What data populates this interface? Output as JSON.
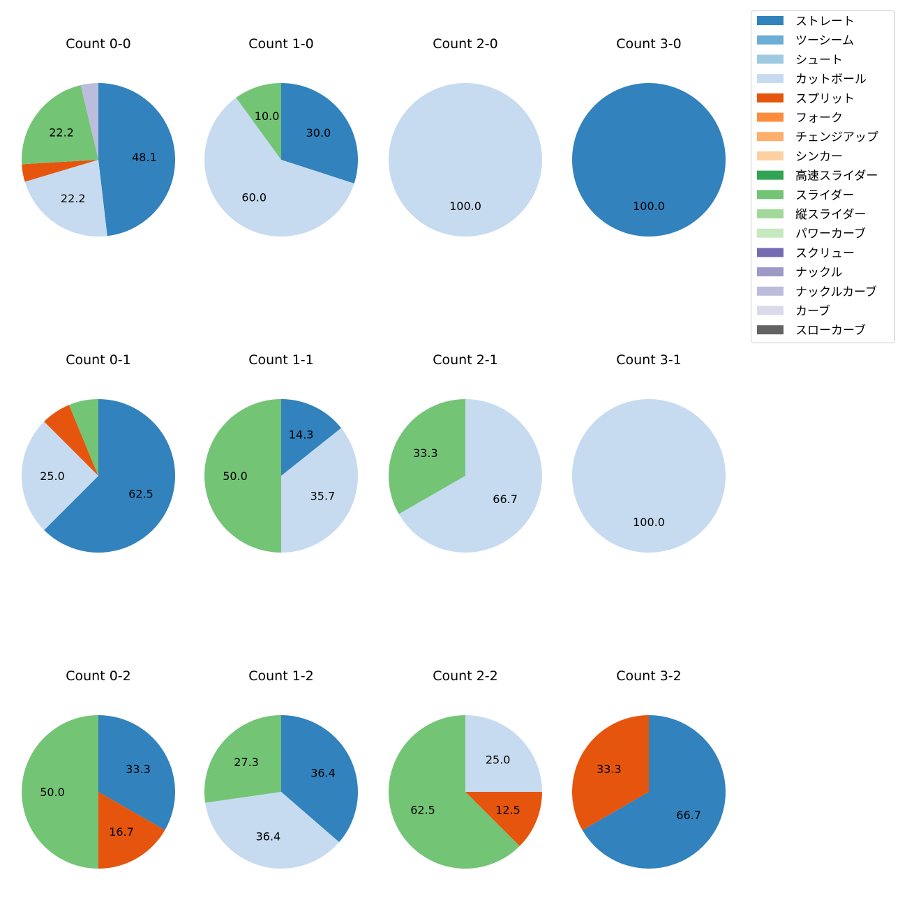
{
  "chart_data": {
    "type": "pie",
    "pitch_types": [
      {
        "name": "ストレート",
        "color": "#3182bd"
      },
      {
        "name": "ツーシーム",
        "color": "#6baed6"
      },
      {
        "name": "シュート",
        "color": "#9ecae1"
      },
      {
        "name": "カットボール",
        "color": "#c6dbef"
      },
      {
        "name": "スプリット",
        "color": "#e6550d"
      },
      {
        "name": "フォーク",
        "color": "#fd8d3c"
      },
      {
        "name": "チェンジアップ",
        "color": "#fdae6b"
      },
      {
        "name": "シンカー",
        "color": "#fdd0a2"
      },
      {
        "name": "高速スライダー",
        "color": "#31a354"
      },
      {
        "name": "スライダー",
        "color": "#74c476"
      },
      {
        "name": "縦スライダー",
        "color": "#a1d99b"
      },
      {
        "name": "パワーカーブ",
        "color": "#c7e9c0"
      },
      {
        "name": "スクリュー",
        "color": "#756bb1"
      },
      {
        "name": "ナックル",
        "color": "#9e9ac8"
      },
      {
        "name": "ナックルカーブ",
        "color": "#bcbddc"
      },
      {
        "name": "カーブ",
        "color": "#dadaeb"
      },
      {
        "name": "スローカーブ",
        "color": "#636363"
      }
    ],
    "charts": [
      {
        "title": "Count 0-0",
        "slices": [
          {
            "pitch": "ストレート",
            "value": 48.1,
            "label": "48.1"
          },
          {
            "pitch": "カットボール",
            "value": 22.2,
            "label": "22.2"
          },
          {
            "pitch": "スプリット",
            "value": 3.7,
            "label": ""
          },
          {
            "pitch": "スライダー",
            "value": 22.2,
            "label": "22.2"
          },
          {
            "pitch": "ナックルカーブ",
            "value": 3.7,
            "label": ""
          }
        ]
      },
      {
        "title": "Count 1-0",
        "slices": [
          {
            "pitch": "ストレート",
            "value": 30.0,
            "label": "30.0"
          },
          {
            "pitch": "カットボール",
            "value": 60.0,
            "label": "60.0"
          },
          {
            "pitch": "スライダー",
            "value": 10.0,
            "label": "10.0"
          }
        ]
      },
      {
        "title": "Count 2-0",
        "slices": [
          {
            "pitch": "カットボール",
            "value": 100.0,
            "label": "100.0"
          }
        ]
      },
      {
        "title": "Count 3-0",
        "slices": [
          {
            "pitch": "ストレート",
            "value": 100.0,
            "label": "100.0"
          }
        ]
      },
      {
        "title": "Count 0-1",
        "slices": [
          {
            "pitch": "ストレート",
            "value": 62.5,
            "label": "62.5"
          },
          {
            "pitch": "カットボール",
            "value": 25.0,
            "label": "25.0"
          },
          {
            "pitch": "スプリット",
            "value": 6.25,
            "label": ""
          },
          {
            "pitch": "スライダー",
            "value": 6.25,
            "label": ""
          }
        ]
      },
      {
        "title": "Count 1-1",
        "slices": [
          {
            "pitch": "ストレート",
            "value": 14.3,
            "label": "14.3"
          },
          {
            "pitch": "カットボール",
            "value": 35.7,
            "label": "35.7"
          },
          {
            "pitch": "スライダー",
            "value": 50.0,
            "label": "50.0"
          }
        ]
      },
      {
        "title": "Count 2-1",
        "slices": [
          {
            "pitch": "カットボール",
            "value": 66.7,
            "label": "66.7"
          },
          {
            "pitch": "スライダー",
            "value": 33.3,
            "label": "33.3"
          }
        ]
      },
      {
        "title": "Count 3-1",
        "slices": [
          {
            "pitch": "カットボール",
            "value": 100.0,
            "label": "100.0"
          }
        ]
      },
      {
        "title": "Count 0-2",
        "slices": [
          {
            "pitch": "ストレート",
            "value": 33.3,
            "label": "33.3"
          },
          {
            "pitch": "スプリット",
            "value": 16.7,
            "label": "16.7"
          },
          {
            "pitch": "スライダー",
            "value": 50.0,
            "label": "50.0"
          }
        ]
      },
      {
        "title": "Count 1-2",
        "slices": [
          {
            "pitch": "ストレート",
            "value": 36.4,
            "label": "36.4"
          },
          {
            "pitch": "カットボール",
            "value": 36.4,
            "label": "36.4"
          },
          {
            "pitch": "スライダー",
            "value": 27.3,
            "label": "27.3"
          }
        ]
      },
      {
        "title": "Count 2-2",
        "slices": [
          {
            "pitch": "カットボール",
            "value": 25.0,
            "label": "25.0"
          },
          {
            "pitch": "スプリット",
            "value": 12.5,
            "label": "12.5"
          },
          {
            "pitch": "スライダー",
            "value": 62.5,
            "label": "62.5"
          }
        ]
      },
      {
        "title": "Count 3-2",
        "slices": [
          {
            "pitch": "ストレート",
            "value": 66.7,
            "label": "66.7"
          },
          {
            "pitch": "スプリット",
            "value": 33.3,
            "label": "33.3"
          }
        ]
      }
    ]
  }
}
